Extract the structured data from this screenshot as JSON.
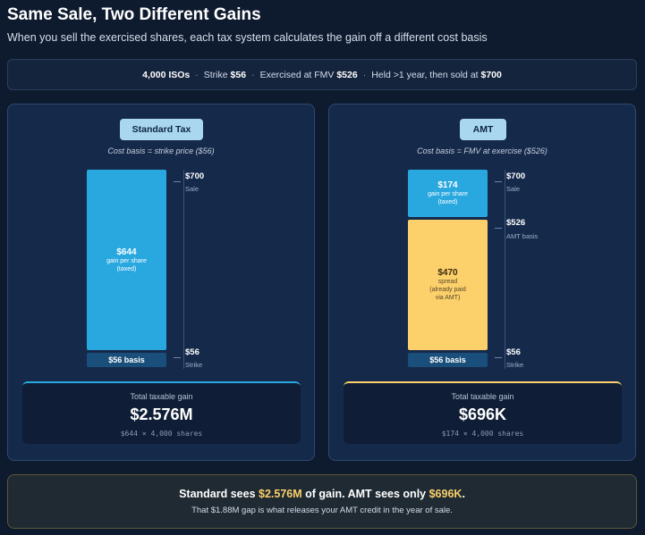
{
  "header": {
    "title": "Same Sale, Two Different Gains",
    "subtitle": "When you sell the exercised shares, each tax system calculates the gain off a different cost basis"
  },
  "info": {
    "shares": "4,000 ISOs",
    "strike_label": "Strike",
    "strike_value": "$56",
    "exercise_label": "Exercised at FMV",
    "exercise_value": "$526",
    "hold_label": "Held >1 year, then sold at",
    "sale_value": "$700",
    "separator": "·"
  },
  "standard": {
    "badge": "Standard Tax",
    "basis_note": "Cost basis = strike price ($56)",
    "bar_amount": "$644",
    "bar_desc_1": "gain per share",
    "bar_desc_2": "(taxed)",
    "basis_block": "$56 basis",
    "tick_top_value": "$700",
    "tick_top_sub": "Sale",
    "tick_bottom_value": "$56",
    "tick_bottom_sub": "Strike",
    "gain_label": "Total taxable gain",
    "gain_value": "$2.576M",
    "gain_calc": "$644 × 4,000 shares"
  },
  "amt": {
    "badge": "AMT",
    "basis_note": "Cost basis = FMV at exercise ($526)",
    "top_amount": "$174",
    "top_desc_1": "gain per share",
    "top_desc_2": "(taxed)",
    "spread_amount": "$470",
    "spread_desc_1": "spread",
    "spread_desc_2": "(already paid",
    "spread_desc_3": "via AMT)",
    "basis_block": "$56 basis",
    "tick_top_value": "$700",
    "tick_top_sub": "Sale",
    "tick_mid_value": "$526",
    "tick_mid_sub": "AMT basis",
    "tick_bottom_value": "$56",
    "tick_bottom_sub": "Strike",
    "gain_label": "Total taxable gain",
    "gain_value": "$696K",
    "gain_calc": "$174 × 4,000 shares"
  },
  "summary": {
    "line1_a": "Standard sees ",
    "line1_b": "$2.576M",
    "line1_c": " of gain. AMT sees only ",
    "line1_d": "$696K",
    "line1_e": ".",
    "line2": "That $1.88M gap is what releases your AMT credit in the year of sale."
  },
  "colors": {
    "standard_bar": "#29a8e0",
    "amt_spread": "#fcd06a",
    "basis_block": "#1a4f7c",
    "highlight": "#fcd06a"
  }
}
